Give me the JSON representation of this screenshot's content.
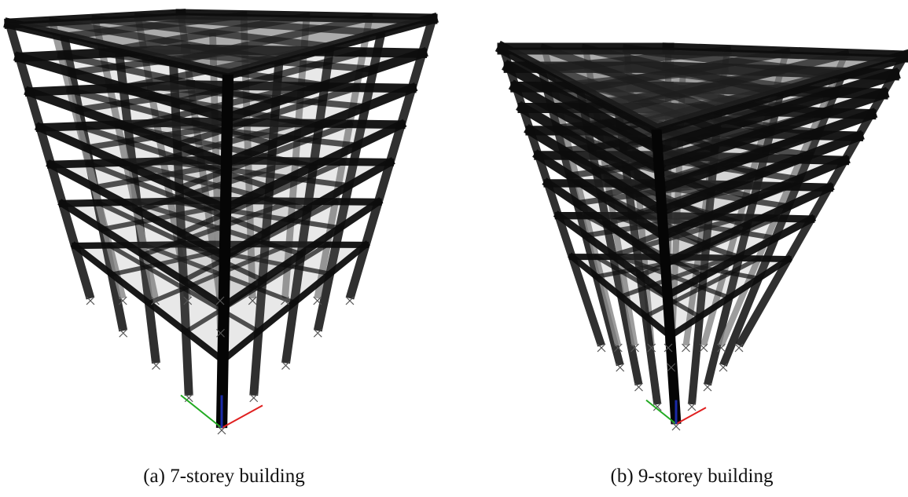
{
  "figure": {
    "panels": [
      {
        "id": "a",
        "caption": "(a) 7-storey building",
        "storeys": 7,
        "bays": 4
      },
      {
        "id": "b",
        "caption": "(b) 9-storey building",
        "storeys": 9,
        "bays": 4
      }
    ],
    "colors": {
      "frame": "#0d0d0d",
      "slab_fill": "#6e6e6e",
      "column_outer": "#8c8c8c",
      "axis_x": "#e02020",
      "axis_y": "#22aa22",
      "axis_z": "#1a2aa8"
    },
    "icons": [
      "axis-triad-icon",
      "support-icon"
    ]
  }
}
